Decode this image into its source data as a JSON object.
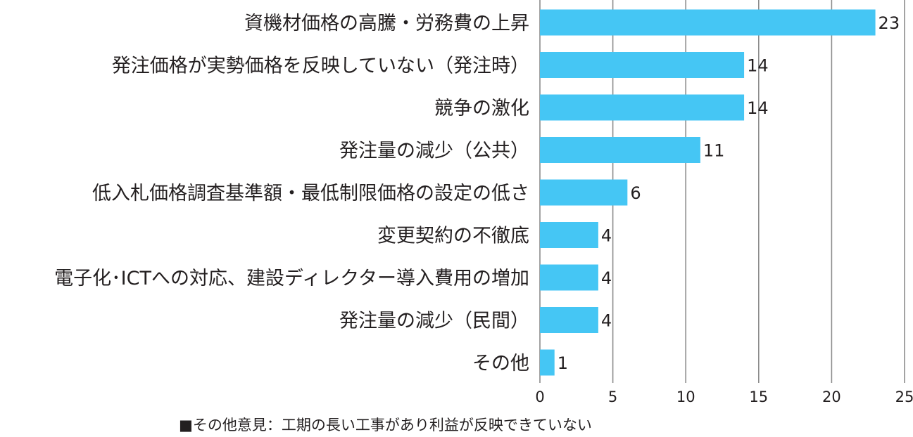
{
  "chart_data": {
    "type": "bar",
    "orientation": "horizontal",
    "categories": [
      "資機材価格の高騰・労務費の上昇",
      "発注価格が実勢価格を反映していない（発注時）",
      "競争の激化",
      "発注量の減少（公共）",
      "低入札価格調査基準額・最低制限価格の設定の低さ",
      "変更契約の不徹底",
      "電子化･ICTへの対応、建設ディレクター導入費用の増加",
      "発注量の減少（民間）",
      "その他"
    ],
    "values": [
      23,
      14,
      14,
      11,
      6,
      4,
      4,
      4,
      1
    ],
    "xlim": [
      0,
      25
    ],
    "xticks": [
      0,
      5,
      10,
      15,
      20,
      25
    ],
    "xtick_labels": [
      "0",
      "5",
      "10",
      "15",
      "20",
      "25"
    ],
    "grid": "vertical",
    "bar_color": "#45c6f4",
    "grid_color": "#8c8c8c",
    "title": "",
    "xlabel": "",
    "ylabel": ""
  },
  "note": "■その他意見：工期の長い工事があり利益が反映できていない"
}
